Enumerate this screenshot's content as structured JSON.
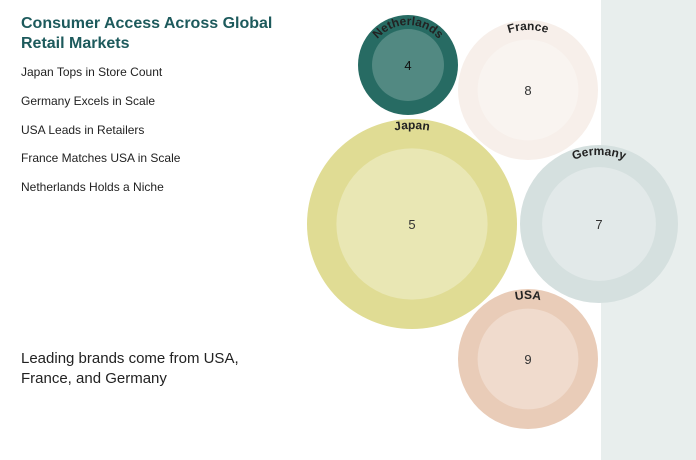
{
  "chart_data": {
    "type": "bubble",
    "title": "Consumer Access Across Global Retail Markets",
    "highlights": [
      "Japan Tops in Store Count",
      "Germany Excels in Scale",
      "USA Leads in Retailers",
      "France Matches USA in Scale",
      "Netherlands Holds a Niche"
    ],
    "note": "Leading brands come from USA, France, and Germany",
    "categories": [
      "Netherlands",
      "France",
      "Japan",
      "Germany",
      "USA"
    ],
    "values": [
      4,
      8,
      5,
      7,
      9
    ],
    "sizes": [
      50,
      70,
      105,
      79,
      70
    ],
    "colors": [
      "#276b63",
      "#f7efea",
      "#e0dc94",
      "#d5e0df",
      "#e9ccb8"
    ]
  }
}
